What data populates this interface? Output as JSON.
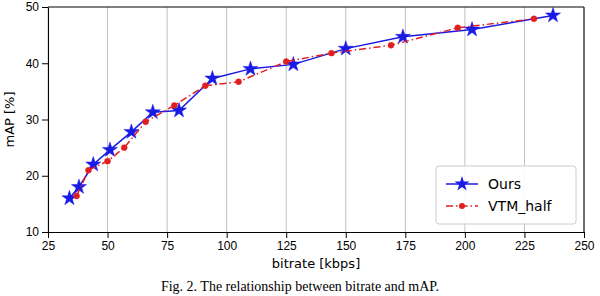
{
  "chart_data": {
    "type": "line",
    "title": "Fig. 2.  The relationship between bitrate and mAP.",
    "x_label": "bitrate [kbps]",
    "y_label": "mAP [%]",
    "xlim": [
      25,
      250
    ],
    "xticks": [
      25,
      50,
      75,
      100,
      125,
      150,
      175,
      200,
      225,
      250
    ],
    "ylim": [
      10,
      50
    ],
    "yticks": [
      10,
      20,
      30,
      40,
      50
    ],
    "grid": true,
    "legend": "lower right",
    "series": [
      {
        "name": "Ours",
        "color": "#1a1ae6",
        "marker": "star",
        "line_style": "solid",
        "x": [
          34,
          38,
          44,
          51,
          60,
          69,
          80,
          94,
          110,
          128,
          150,
          174,
          203,
          237
        ],
        "values": [
          16,
          18,
          22,
          24.6,
          27.8,
          31.3,
          31.6,
          37.3,
          39,
          39.8,
          42.6,
          44.7,
          46,
          48.5
        ]
      },
      {
        "name": "VTM_half",
        "color": "#e02020",
        "marker": "circle",
        "line_style": "dashdot",
        "x": [
          37,
          42,
          50,
          57,
          66,
          78,
          91,
          105,
          125,
          144,
          169,
          197,
          229
        ],
        "values": [
          16.4,
          21,
          22.6,
          25,
          29.6,
          32.5,
          36,
          36.7,
          40.3,
          41.8,
          43.2,
          46.3,
          47.9
        ]
      }
    ]
  }
}
